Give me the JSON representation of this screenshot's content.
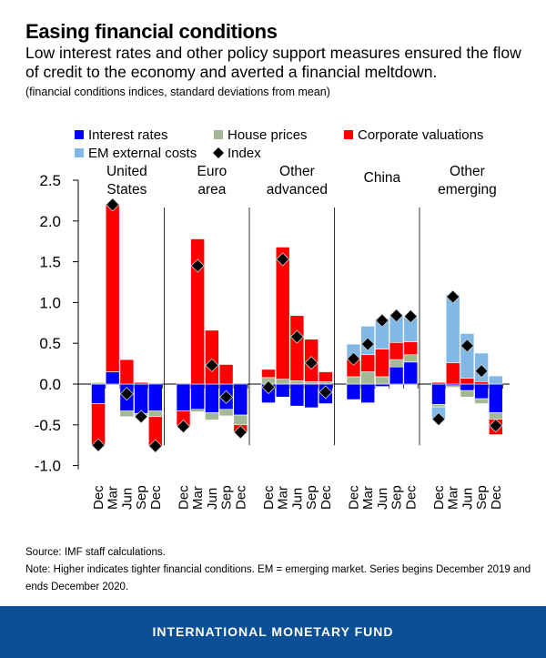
{
  "header": {
    "title": "Easing financial conditions",
    "subtitle": "Low interest rates and other policy support measures ensured the flow of credit to the economy and averted a financial meltdown.",
    "units": "(financial conditions indices, standard deviations from mean)"
  },
  "chart_data": {
    "type": "bar",
    "stacked": true,
    "ylim": [
      -1.0,
      2.5
    ],
    "yticks": [
      "2.5",
      "2.0",
      "1.5",
      "1.0",
      "0.5",
      "0.0",
      "-0.5",
      "-1.0"
    ],
    "grid": false,
    "legend_position": "top",
    "categories": [
      "Dec",
      "Mar",
      "Jun",
      "Sep",
      "Dec"
    ],
    "components": [
      {
        "key": "interest",
        "name": "Interest rates",
        "color": "#0000ff"
      },
      {
        "key": "house",
        "name": "House prices",
        "color": "#a3b995"
      },
      {
        "key": "corp",
        "name": "Corporate valuations",
        "color": "#ff0000"
      },
      {
        "key": "em",
        "name": "EM external costs",
        "color": "#82b8e6"
      }
    ],
    "index_series": {
      "name": "Index",
      "color": "#000000",
      "marker": "diamond"
    },
    "panels": [
      {
        "label": "United States",
        "interest": [
          -0.24,
          0.15,
          -0.33,
          -0.36,
          -0.33
        ],
        "house": [
          0.02,
          0,
          -0.07,
          -0.03,
          -0.07
        ],
        "corp": [
          -0.52,
          2.05,
          0.3,
          0.02,
          -0.36
        ],
        "em": [
          0,
          0,
          0,
          0,
          0
        ],
        "index": [
          -0.75,
          2.2,
          -0.12,
          -0.4,
          -0.76
        ]
      },
      {
        "label": "Euro area",
        "interest": [
          -0.33,
          -0.31,
          -0.35,
          -0.31,
          -0.38
        ],
        "house": [
          0,
          -0.03,
          -0.09,
          -0.08,
          -0.12
        ],
        "corp": [
          -0.18,
          1.78,
          0.66,
          0.24,
          -0.09
        ],
        "em": [
          0,
          0,
          0,
          0,
          0
        ],
        "index": [
          -0.52,
          1.45,
          0.23,
          -0.16,
          -0.59
        ]
      },
      {
        "label": "Other advanced",
        "interest": [
          -0.23,
          -0.16,
          -0.27,
          -0.29,
          -0.24
        ],
        "house": [
          0.08,
          0.06,
          0.04,
          0.03,
          0.03
        ],
        "corp": [
          0.1,
          1.62,
          0.8,
          0.52,
          0.12
        ],
        "em": [
          0,
          0,
          0,
          0,
          0
        ],
        "index": [
          -0.04,
          1.53,
          0.58,
          0.26,
          -0.1
        ]
      },
      {
        "label": "China",
        "interest": [
          -0.19,
          -0.23,
          -0.03,
          0.21,
          0.27
        ],
        "house": [
          0.09,
          0.15,
          0.09,
          0.09,
          0.09
        ],
        "corp": [
          0.21,
          0.21,
          0.34,
          0.21,
          0.16
        ],
        "em": [
          0.19,
          0.35,
          0.37,
          0.32,
          0.3
        ],
        "index": [
          0.31,
          0.49,
          0.78,
          0.84,
          0.83
        ]
      },
      {
        "label": "Other emerging",
        "interest": [
          -0.25,
          -0.02,
          -0.08,
          -0.18,
          -0.35
        ],
        "house": [
          -0.03,
          -0.02,
          -0.08,
          -0.06,
          -0.08
        ],
        "corp": [
          0.02,
          0.26,
          0.07,
          0.03,
          -0.19
        ],
        "em": [
          -0.15,
          0.84,
          0.55,
          0.35,
          0.1
        ],
        "index": [
          -0.43,
          1.07,
          0.47,
          0.16,
          -0.51
        ]
      }
    ]
  },
  "notes": {
    "source": "Source: IMF staff calculations.",
    "note": "Note: Higher indicates tighter financial conditions. EM = emerging market. Series begins December 2019 and ends December 2020."
  },
  "footer": {
    "org": "INTERNATIONAL MONETARY FUND"
  }
}
